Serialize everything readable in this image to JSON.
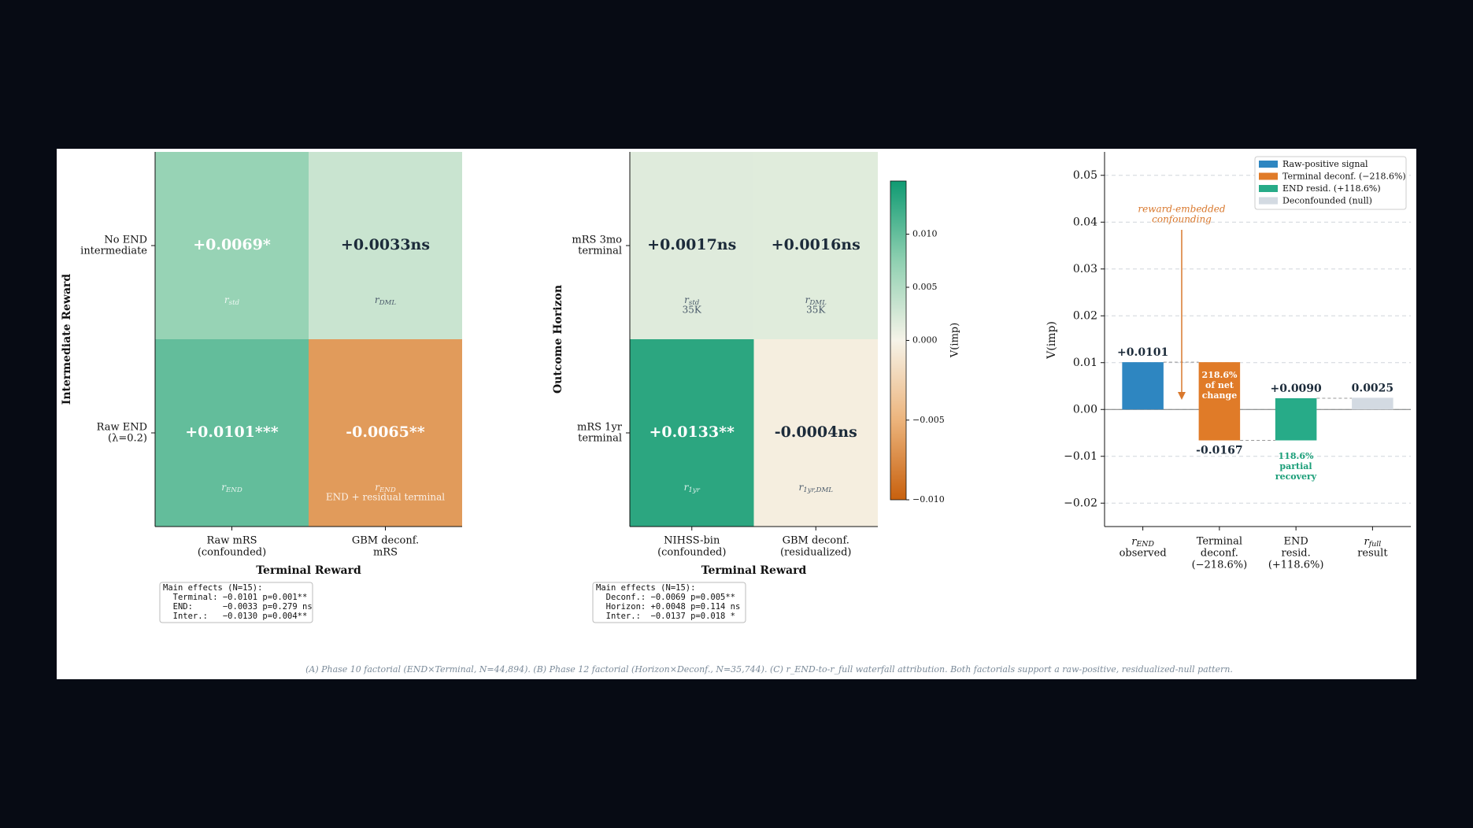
{
  "caption": "(A) Phase 10 factorial (END×Terminal, N=44,894). (B) Phase 12 factorial (Horizon×Deconf., N=35,744). (C) r_END-to-r_full waterfall attribution. Both factorials support a raw-positive, residualized-null pattern.",
  "chart_data": [
    {
      "type": "heatmap",
      "xlabel": "Terminal Reward",
      "ylabel": "Intermediate Reward",
      "columns": [
        [
          "Raw mRS",
          "(confounded)"
        ],
        [
          "GBM deconf.",
          "mRS"
        ]
      ],
      "rows": [
        [
          "No END",
          "intermediate"
        ],
        [
          "Raw END",
          "(λ=0.2)"
        ]
      ],
      "values": [
        [
          0.0069,
          0.0033
        ],
        [
          0.0101,
          -0.0065
        ]
      ],
      "value_labels": [
        [
          "+0.0069*",
          "+0.0033ns"
        ],
        [
          "+0.0101***",
          "-0.0065**"
        ]
      ],
      "cell_notes": [
        [
          [
            {
              "base": "r",
              "sub": "std"
            }
          ],
          [
            {
              "base": "r",
              "sub": "DML"
            }
          ]
        ],
        [
          [
            {
              "base": "r",
              "sub": "END"
            }
          ],
          [
            {
              "base": "r",
              "sub": "END"
            },
            "END + residual terminal"
          ]
        ]
      ],
      "clim": [
        -0.01,
        0.015
      ],
      "cmap": [
        "#c8600d",
        "#ecb47c",
        "#f6f3e8",
        "#8fd0b1",
        "#0f9a72"
      ],
      "notes": [
        "Main effects (N=15):",
        "  Terminal: −0.0101 p=0.001**",
        "  END:      −0.0033 p=0.279 ns",
        "  Inter.:   −0.0130 p=0.004**"
      ]
    },
    {
      "type": "heatmap",
      "xlabel": "Terminal Reward",
      "ylabel": "Outcome Horizon",
      "columns": [
        [
          "NIHSS-bin",
          "(confounded)"
        ],
        [
          "GBM deconf.",
          "(residualized)"
        ]
      ],
      "rows": [
        [
          "mRS 3mo",
          "terminal"
        ],
        [
          "mRS 1yr",
          "terminal"
        ]
      ],
      "values": [
        [
          0.0017,
          0.0016
        ],
        [
          0.0133,
          -0.0004
        ]
      ],
      "value_labels": [
        [
          "+0.0017ns",
          "+0.0016ns"
        ],
        [
          "+0.0133**",
          "-0.0004ns"
        ]
      ],
      "cell_notes": [
        [
          [
            {
              "base": "r",
              "sub": "std"
            },
            "35K"
          ],
          [
            {
              "base": "r",
              "sub": "DML"
            },
            "35K"
          ]
        ],
        [
          [
            {
              "base": "r",
              "sub": "1yr"
            }
          ],
          [
            {
              "base": "r",
              "sub": "1yr,DML"
            }
          ]
        ]
      ],
      "clim": [
        -0.01,
        0.015
      ],
      "cmap": [
        "#c8600d",
        "#ecb47c",
        "#f6f3e8",
        "#8fd0b1",
        "#0f9a72"
      ],
      "colorbar": {
        "label": "V(imp)",
        "ticks": [
          {
            "value": 0.01,
            "label": "0.010"
          },
          {
            "value": 0.005,
            "label": "0.005"
          },
          {
            "value": 0,
            "label": "0.000"
          },
          {
            "value": -0.005,
            "label": "−0.005"
          },
          {
            "value": -0.01,
            "label": "−0.010"
          }
        ]
      },
      "notes": [
        "Main effects (N=15):",
        "  Deconf.: −0.0069 p=0.005**",
        "  Horizon: +0.0048 p=0.114 ns",
        "  Inter.:  −0.0137 p=0.018 *"
      ]
    },
    {
      "type": "waterfall",
      "ylabel": "V(imp)",
      "categories": [
        [
          {
            "base": "r",
            "sub": "END"
          },
          "observed"
        ],
        [
          "Terminal",
          "deconf.",
          "(−218.6%)"
        ],
        [
          "END",
          "resid.",
          "(+118.6%)"
        ],
        [
          {
            "base": "r",
            "sub": "full"
          },
          "result"
        ]
      ],
      "values": [
        0.0101,
        -0.0167,
        0.009,
        0.0025
      ],
      "value_labels": [
        "+0.0101",
        "-0.0167",
        "+0.0090",
        "0.0025"
      ],
      "measure": [
        "relative",
        "relative",
        "relative",
        "total"
      ],
      "colors": [
        "#2e86c1",
        "#e07b28",
        "#27ab88",
        "#d3dae2"
      ],
      "legend": [
        {
          "name": "Raw-positive signal",
          "color": "#2e86c1"
        },
        {
          "name": "Terminal deconf. (−218.6%)",
          "color": "#e07b28"
        },
        {
          "name": "END resid. (+118.6%)",
          "color": "#27ab88"
        },
        {
          "name": "Deconfounded (null)",
          "color": "#d3dae2"
        }
      ],
      "legend_position": "upper right",
      "ylim": [
        -0.025,
        0.055
      ],
      "yticks": [
        {
          "value": -0.02,
          "label": "−0.02"
        },
        {
          "value": -0.01,
          "label": "−0.01"
        },
        {
          "value": 0,
          "label": "0.00"
        },
        {
          "value": 0.01,
          "label": "0.01"
        },
        {
          "value": 0.02,
          "label": "0.02"
        },
        {
          "value": 0.03,
          "label": "0.03"
        },
        {
          "value": 0.04,
          "label": "0.04"
        },
        {
          "value": 0.05,
          "label": "0.05"
        }
      ],
      "grid": true,
      "annotations": [
        {
          "text": [
            "reward-embedded",
            "confounding"
          ],
          "color": "#d9782d"
        },
        {
          "text": [
            "218.6%",
            "of net",
            "change"
          ],
          "color": "#ffffff"
        },
        {
          "text": [
            "118.6%",
            "partial",
            "recovery"
          ],
          "color": "#1a9e78"
        }
      ]
    }
  ]
}
